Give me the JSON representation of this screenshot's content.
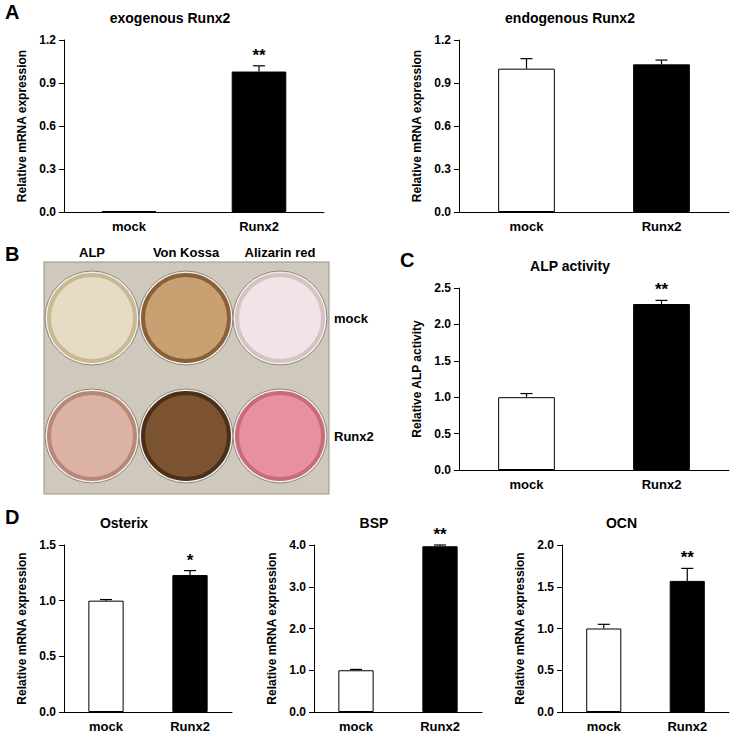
{
  "chart_data": [
    {
      "panel": "A",
      "type": "bar",
      "title": "exogenous Runx2",
      "y_label": "Relative mRNA expression",
      "categories": [
        "mock",
        "Runx2"
      ],
      "values": [
        0.005,
        0.98
      ],
      "errors": [
        0,
        0.04
      ],
      "annotations": [
        {
          "category": "Runx2",
          "text": "**"
        }
      ],
      "colors": [
        "#4472c4",
        "#000000"
      ],
      "ylim": [
        0,
        1.2
      ],
      "yticks": [
        {
          "value": 0,
          "label": "0.0"
        },
        0.3,
        0.6,
        0.9,
        1.2
      ],
      "grid": false
    },
    {
      "type": "bar",
      "title": "endogenous Runx2",
      "y_label": "Relative mRNA expression",
      "categories": [
        "mock",
        "Runx2"
      ],
      "values": [
        1.0,
        1.03
      ],
      "errors": [
        0.07,
        0.03
      ],
      "colors": [
        "#ffffff",
        "#000000"
      ],
      "ylim": [
        0,
        1.2
      ],
      "yticks": [
        {
          "value": 0,
          "label": "0.0"
        },
        0.3,
        0.6,
        0.9,
        1.2
      ],
      "grid": false
    },
    {
      "panel": "C",
      "type": "bar",
      "title": "ALP activity",
      "y_label": "Relative ALP activity",
      "categories": [
        "mock",
        "Runx2"
      ],
      "values": [
        1.0,
        2.28
      ],
      "errors": [
        0.05,
        0.05
      ],
      "annotations": [
        {
          "category": "Runx2",
          "text": "**"
        }
      ],
      "colors": [
        "#ffffff",
        "#000000"
      ],
      "ylim": [
        0,
        2.5
      ],
      "yticks": [
        {
          "value": 0,
          "label": "0.0"
        },
        0.5,
        {
          "value": 1,
          "label": "1.0"
        },
        1.5,
        {
          "value": 2,
          "label": "2.0"
        },
        2.5
      ],
      "grid": false
    },
    {
      "panel": "D",
      "type": "bar",
      "title": "Osterix",
      "y_label": "Relative mRNA expression",
      "categories": [
        "mock",
        "Runx2"
      ],
      "values": [
        1.0,
        1.23
      ],
      "errors": [
        0.01,
        0.04
      ],
      "annotations": [
        {
          "category": "Runx2",
          "text": "*"
        }
      ],
      "colors": [
        "#ffffff",
        "#000000"
      ],
      "ylim": [
        0,
        1.5
      ],
      "yticks": [
        {
          "value": 0,
          "label": "0.0"
        },
        0.5,
        {
          "value": 1,
          "label": "1.0"
        },
        1.5
      ],
      "grid": false
    },
    {
      "type": "bar",
      "title": "BSP",
      "y_label": "Relative mRNA expression",
      "categories": [
        "mock",
        "Runx2"
      ],
      "values": [
        1.0,
        3.97
      ],
      "errors": [
        0.02,
        0.03
      ],
      "annotations": [
        {
          "category": "Runx2",
          "text": "**"
        }
      ],
      "colors": [
        "#ffffff",
        "#000000"
      ],
      "ylim": [
        0,
        4
      ],
      "yticks": [
        {
          "value": 0,
          "label": "0.0"
        },
        {
          "value": 1,
          "label": "1.0"
        },
        {
          "value": 2,
          "label": "2.0"
        },
        {
          "value": 3,
          "label": "3.0"
        },
        {
          "value": 4,
          "label": "4.0"
        }
      ],
      "grid": false
    },
    {
      "type": "bar",
      "title": "OCN",
      "y_label": "Relative mRNA expression",
      "categories": [
        "mock",
        "Runx2"
      ],
      "values": [
        1.0,
        1.57
      ],
      "errors": [
        0.05,
        0.15
      ],
      "annotations": [
        {
          "category": "Runx2",
          "text": "**"
        }
      ],
      "colors": [
        "#ffffff",
        "#000000"
      ],
      "ylim": [
        0,
        2
      ],
      "yticks": [
        {
          "value": 0,
          "label": "0.0"
        },
        0.5,
        {
          "value": 1,
          "label": "1.0"
        },
        1.5,
        {
          "value": 2,
          "label": "2.0"
        }
      ],
      "grid": false
    }
  ],
  "image_panel": {
    "panel": "B",
    "columns": [
      "ALP",
      "Von Kossa",
      "Alizarin red"
    ],
    "rows": [
      "mock",
      "Runx2"
    ]
  }
}
